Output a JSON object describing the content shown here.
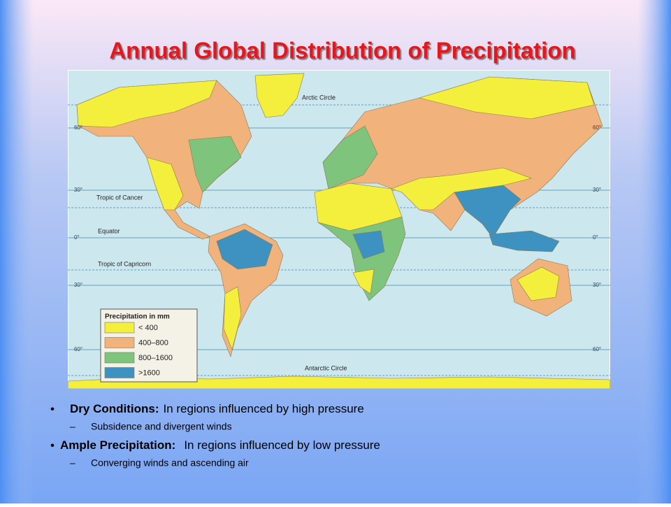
{
  "title": "Annual Global Distribution of Precipitation",
  "map": {
    "circles": [
      "Arctic Circle",
      "Tropic of Cancer",
      "Equator",
      "Tropic of Capricorn",
      "Antarctic Circle"
    ],
    "latitude_labels": [
      "60°",
      "30°",
      "0°",
      "30°",
      "60°"
    ],
    "legend": {
      "title": "Precipitation in mm",
      "items": [
        {
          "label": "< 400",
          "color": "#f4ee3c"
        },
        {
          "label": "400–800",
          "color": "#f2b27c"
        },
        {
          "label": "800–1600",
          "color": "#7fc47c"
        },
        {
          "label": ">1600",
          "color": "#3d92c2"
        }
      ]
    }
  },
  "bullets": [
    {
      "term": "Dry Conditions:",
      "text": "In regions influenced by high pressure",
      "sub": "Subsidence and divergent winds"
    },
    {
      "term": "Ample Precipitation:",
      "text": "In regions influenced by low pressure",
      "sub": "Converging winds and ascending air"
    }
  ]
}
